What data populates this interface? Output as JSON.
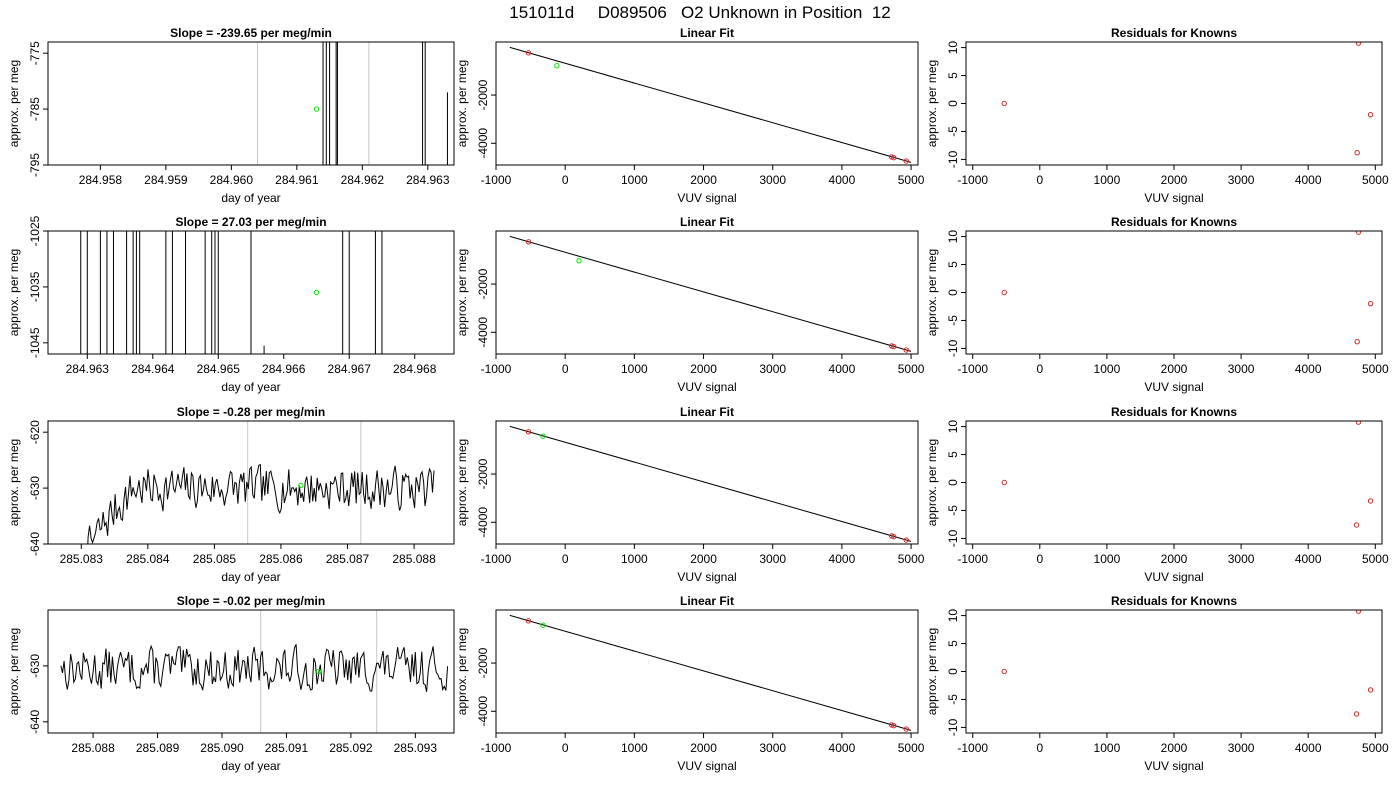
{
  "figure": {
    "title": "151011d     D089506   O2 Unknown in Position  12"
  },
  "chart_data": [
    {
      "id": "r1c1",
      "type": "line",
      "title": "Slope =  -239.65  per meg/min",
      "xlabel": "day of year",
      "ylabel": "approx. per meg",
      "xlim": [
        284.9572,
        284.9634
      ],
      "ylim": [
        -795,
        -773
      ],
      "xticks": [
        "284.958",
        "284.959",
        "284.960",
        "284.961",
        "284.962",
        "284.963"
      ],
      "xtick_values": [
        284.958,
        284.959,
        284.96,
        284.961,
        284.962,
        284.963
      ],
      "yticks": [
        "-775",
        "-785",
        "-795"
      ],
      "ytick_values": [
        -775,
        -785,
        -795
      ],
      "vlines": [
        284.9604,
        284.9621
      ],
      "segments": [
        [
          284.9614,
          -900,
          284.9614,
          -700
        ],
        [
          284.96145,
          -700,
          284.96145,
          -900
        ],
        [
          284.9615,
          -900,
          284.9615,
          -700
        ],
        [
          284.9616,
          -700,
          284.9616,
          -900
        ],
        [
          284.96162,
          -900,
          284.96162,
          -700
        ],
        [
          284.96292,
          -700,
          284.96292,
          -900
        ],
        [
          284.96296,
          -900,
          284.96296,
          -700
        ],
        [
          284.9633,
          -782,
          284.9633,
          -900
        ]
      ],
      "highlight_point": {
        "x": 284.9613,
        "y": -785
      }
    },
    {
      "id": "r1c2",
      "type": "scatter",
      "title": "Linear Fit",
      "xlabel": "VUV signal",
      "ylabel": "approx. per meg",
      "xlim": [
        -1000,
        5100
      ],
      "ylim": [
        -4900,
        200
      ],
      "xticks": [
        "-1000",
        "0",
        "1000",
        "2000",
        "3000",
        "4000",
        "5000"
      ],
      "xtick_values": [
        -1000,
        0,
        1000,
        2000,
        3000,
        4000,
        5000
      ],
      "yticks": [
        "-2000",
        "-4000"
      ],
      "ytick_values": [
        -2000,
        -4000
      ],
      "fit_line": [
        [
          -800,
          -24
        ],
        [
          5000,
          -4790
        ]
      ],
      "points": [
        {
          "x": -530,
          "y": -250
        },
        {
          "x": 4720,
          "y": -4565
        },
        {
          "x": 4750,
          "y": -4595
        },
        {
          "x": 4930,
          "y": -4735
        }
      ],
      "highlight_point": {
        "x": -120,
        "y": -785
      }
    },
    {
      "id": "r1c3",
      "type": "scatter",
      "title": "Residuals for Knowns",
      "xlabel": "VUV signal",
      "ylabel": "approx. per meg",
      "xlim": [
        -1100,
        5100
      ],
      "ylim": [
        -11,
        11
      ],
      "xticks": [
        "-1000",
        "0",
        "1000",
        "2000",
        "3000",
        "4000",
        "5000"
      ],
      "xtick_values": [
        -1000,
        0,
        1000,
        2000,
        3000,
        4000,
        5000
      ],
      "yticks": [
        "10",
        "5",
        "0",
        "-5",
        "-10"
      ],
      "ytick_values": [
        10,
        5,
        0,
        -5,
        -10
      ],
      "points": [
        {
          "x": -530,
          "y": 0
        },
        {
          "x": 4730,
          "y": -8.8
        },
        {
          "x": 4750,
          "y": 10.8
        },
        {
          "x": 4930,
          "y": -2
        }
      ]
    },
    {
      "id": "r2c1",
      "type": "line",
      "title": "Slope =  27.03  per meg/min",
      "xlabel": "day of year",
      "ylabel": "approx. per meg",
      "xlim": [
        284.9624,
        284.9686
      ],
      "ylim": [
        -1047,
        -1025
      ],
      "xticks": [
        "284.963",
        "284.964",
        "284.965",
        "284.966",
        "284.967",
        "284.968"
      ],
      "xtick_values": [
        284.963,
        284.964,
        284.965,
        284.966,
        284.967,
        284.968
      ],
      "yticks": [
        "-1025",
        "-1035",
        "-1045"
      ],
      "ytick_values": [
        -1025,
        -1035,
        -1045
      ],
      "vlines": [],
      "segments": [
        [
          284.9629,
          -1100,
          284.9629,
          -1000
        ],
        [
          284.963,
          -1000,
          284.963,
          -1100
        ],
        [
          284.9632,
          -1100,
          284.9632,
          -1000
        ],
        [
          284.9633,
          -1000,
          284.9633,
          -1100
        ],
        [
          284.9634,
          -1100,
          284.9634,
          -1000
        ],
        [
          284.9636,
          -1000,
          284.9636,
          -1100
        ],
        [
          284.9637,
          -1100,
          284.9637,
          -1000
        ],
        [
          284.96375,
          -1000,
          284.96375,
          -1100
        ],
        [
          284.9638,
          -1100,
          284.9638,
          -1000
        ],
        [
          284.9642,
          -1000,
          284.9642,
          -1100
        ],
        [
          284.9643,
          -1100,
          284.9643,
          -1000
        ],
        [
          284.9645,
          -1000,
          284.9645,
          -1100
        ],
        [
          284.9648,
          -1100,
          284.9648,
          -1000
        ],
        [
          284.9649,
          -1000,
          284.9649,
          -1100
        ],
        [
          284.96495,
          -1100,
          284.96495,
          -1000
        ],
        [
          284.965,
          -1000,
          284.965,
          -1100
        ],
        [
          284.9655,
          -1100,
          284.9655,
          -1000
        ],
        [
          284.9657,
          -1045.5,
          284.9657,
          -1100
        ],
        [
          284.9669,
          -1100,
          284.9669,
          -1000
        ],
        [
          284.967,
          -1000,
          284.967,
          -1100
        ],
        [
          284.9674,
          -1100,
          284.9674,
          -1000
        ],
        [
          284.9675,
          -1000,
          284.9675,
          -1100
        ]
      ],
      "highlight_point": {
        "x": 284.9665,
        "y": -1036
      }
    },
    {
      "id": "r2c2",
      "type": "scatter",
      "title": "Linear Fit",
      "xlabel": "VUV signal",
      "ylabel": "approx. per meg",
      "xlim": [
        -1000,
        5100
      ],
      "ylim": [
        -4900,
        200
      ],
      "xticks": [
        "-1000",
        "0",
        "1000",
        "2000",
        "3000",
        "4000",
        "5000"
      ],
      "xtick_values": [
        -1000,
        0,
        1000,
        2000,
        3000,
        4000,
        5000
      ],
      "yticks": [
        "-2000",
        "-4000"
      ],
      "ytick_values": [
        -2000,
        -4000
      ],
      "fit_line": [
        [
          -800,
          -24
        ],
        [
          5000,
          -4790
        ]
      ],
      "points": [
        {
          "x": -530,
          "y": -250
        },
        {
          "x": 4720,
          "y": -4565
        },
        {
          "x": 4750,
          "y": -4595
        },
        {
          "x": 4930,
          "y": -4735
        }
      ],
      "highlight_point": {
        "x": 200,
        "y": -1036
      }
    },
    {
      "id": "r2c3",
      "type": "scatter",
      "title": "Residuals for Knowns",
      "xlabel": "VUV signal",
      "ylabel": "approx. per meg",
      "xlim": [
        -1100,
        5100
      ],
      "ylim": [
        -11,
        11
      ],
      "xticks": [
        "-1000",
        "0",
        "1000",
        "2000",
        "3000",
        "4000",
        "5000"
      ],
      "xtick_values": [
        -1000,
        0,
        1000,
        2000,
        3000,
        4000,
        5000
      ],
      "yticks": [
        "10",
        "5",
        "0",
        "-5",
        "-10"
      ],
      "ytick_values": [
        10,
        5,
        0,
        -5,
        -10
      ],
      "points": [
        {
          "x": -530,
          "y": 0
        },
        {
          "x": 4730,
          "y": -8.8
        },
        {
          "x": 4750,
          "y": 10.8
        },
        {
          "x": 4930,
          "y": -2
        }
      ]
    },
    {
      "id": "r3c1",
      "type": "line",
      "title": "Slope =  -0.28  per meg/min",
      "xlabel": "day of year",
      "ylabel": "approx. per meg",
      "xlim": [
        285.0825,
        285.0886
      ],
      "ylim": [
        -640,
        -618
      ],
      "xticks": [
        "285.083",
        "285.084",
        "285.085",
        "285.086",
        "285.087",
        "285.088"
      ],
      "xtick_values": [
        285.083,
        285.084,
        285.085,
        285.086,
        285.087,
        285.088
      ],
      "yticks": [
        "-620",
        "-630",
        "-640"
      ],
      "ytick_values": [
        -620,
        -630,
        -640
      ],
      "vlines": [
        285.0855,
        285.0872
      ],
      "noise": {
        "seed": 7,
        "x_start": 285.0829,
        "x_end": 285.0883,
        "rise_end": 285.0838,
        "start_y": -650,
        "mean": -630,
        "amplitude": 3.2
      },
      "highlight_point": {
        "x": 285.0863,
        "y": -629.5
      }
    },
    {
      "id": "r3c2",
      "type": "scatter",
      "title": "Linear Fit",
      "xlabel": "VUV signal",
      "ylabel": "approx. per meg",
      "xlim": [
        -1000,
        5100
      ],
      "ylim": [
        -4900,
        200
      ],
      "xticks": [
        "-1000",
        "0",
        "1000",
        "2000",
        "3000",
        "4000",
        "5000"
      ],
      "xtick_values": [
        -1000,
        0,
        1000,
        2000,
        3000,
        4000,
        5000
      ],
      "yticks": [
        "-2000",
        "-4000"
      ],
      "ytick_values": [
        -2000,
        -4000
      ],
      "fit_line": [
        [
          -800,
          -24
        ],
        [
          5000,
          -4790
        ]
      ],
      "points": [
        {
          "x": -530,
          "y": -250
        },
        {
          "x": 4720,
          "y": -4565
        },
        {
          "x": 4750,
          "y": -4595
        },
        {
          "x": 4930,
          "y": -4735
        }
      ],
      "highlight_point": {
        "x": -320,
        "y": -430
      }
    },
    {
      "id": "r3c3",
      "type": "scatter",
      "title": "Residuals for Knowns",
      "xlabel": "VUV signal",
      "ylabel": "approx. per meg",
      "xlim": [
        -1100,
        5100
      ],
      "ylim": [
        -11,
        11
      ],
      "xticks": [
        "-1000",
        "0",
        "1000",
        "2000",
        "3000",
        "4000",
        "5000"
      ],
      "xtick_values": [
        -1000,
        0,
        1000,
        2000,
        3000,
        4000,
        5000
      ],
      "yticks": [
        "10",
        "5",
        "0",
        "-5",
        "-10"
      ],
      "ytick_values": [
        10,
        5,
        0,
        -5,
        -10
      ],
      "points": [
        {
          "x": -530,
          "y": 0
        },
        {
          "x": 4720,
          "y": -7.6
        },
        {
          "x": 4750,
          "y": 10.8
        },
        {
          "x": 4930,
          "y": -3.3
        }
      ]
    },
    {
      "id": "r4c1",
      "type": "line",
      "title": "Slope =  -0.02  per meg/min",
      "xlabel": "day of year",
      "ylabel": "approx. per meg",
      "xlim": [
        285.0873,
        285.0936
      ],
      "ylim": [
        -642,
        -620
      ],
      "xticks": [
        "285.088",
        "285.089",
        "285.090",
        "285.091",
        "285.092",
        "285.093"
      ],
      "xtick_values": [
        285.088,
        285.089,
        285.09,
        285.091,
        285.092,
        285.093
      ],
      "yticks": [
        "-630",
        "-640"
      ],
      "ytick_values": [
        -630,
        -640
      ],
      "vlines": [
        285.0906,
        285.0924
      ],
      "noise": {
        "seed": 13,
        "x_start": 285.0875,
        "x_end": 285.0935,
        "rise_end": null,
        "start_y": -630,
        "mean": -630.5,
        "amplitude": 3.2
      },
      "highlight_point": {
        "x": 285.0915,
        "y": -631
      }
    },
    {
      "id": "r4c2",
      "type": "scatter",
      "title": "Linear Fit",
      "xlabel": "VUV signal",
      "ylabel": "approx. per meg",
      "xlim": [
        -1000,
        5100
      ],
      "ylim": [
        -4900,
        200
      ],
      "xticks": [
        "-1000",
        "0",
        "1000",
        "2000",
        "3000",
        "4000",
        "5000"
      ],
      "xtick_values": [
        -1000,
        0,
        1000,
        2000,
        3000,
        4000,
        5000
      ],
      "yticks": [
        "-2000",
        "-4000"
      ],
      "ytick_values": [
        -2000,
        -4000
      ],
      "fit_line": [
        [
          -800,
          -24
        ],
        [
          5000,
          -4790
        ]
      ],
      "points": [
        {
          "x": -530,
          "y": -250
        },
        {
          "x": 4720,
          "y": -4565
        },
        {
          "x": 4750,
          "y": -4595
        },
        {
          "x": 4930,
          "y": -4735
        }
      ],
      "highlight_point": {
        "x": -320,
        "y": -430
      }
    },
    {
      "id": "r4c3",
      "type": "scatter",
      "title": "Residuals for Knowns",
      "xlabel": "VUV signal",
      "ylabel": "approx. per meg",
      "xlim": [
        -1100,
        5100
      ],
      "ylim": [
        -11,
        11
      ],
      "xticks": [
        "-1000",
        "0",
        "1000",
        "2000",
        "3000",
        "4000",
        "5000"
      ],
      "xtick_values": [
        -1000,
        0,
        1000,
        2000,
        3000,
        4000,
        5000
      ],
      "yticks": [
        "10",
        "5",
        "0",
        "-5",
        "-10"
      ],
      "ytick_values": [
        10,
        5,
        0,
        -5,
        -10
      ],
      "points": [
        {
          "x": -530,
          "y": 0
        },
        {
          "x": 4720,
          "y": -7.6
        },
        {
          "x": 4750,
          "y": 10.8
        },
        {
          "x": 4930,
          "y": -3.3
        }
      ]
    }
  ],
  "colors": {
    "axis": "#000000",
    "known_point": "#d62728",
    "unknown_point": "#00e600",
    "reference_line": "#c8c8c8",
    "trace": "#000000"
  }
}
